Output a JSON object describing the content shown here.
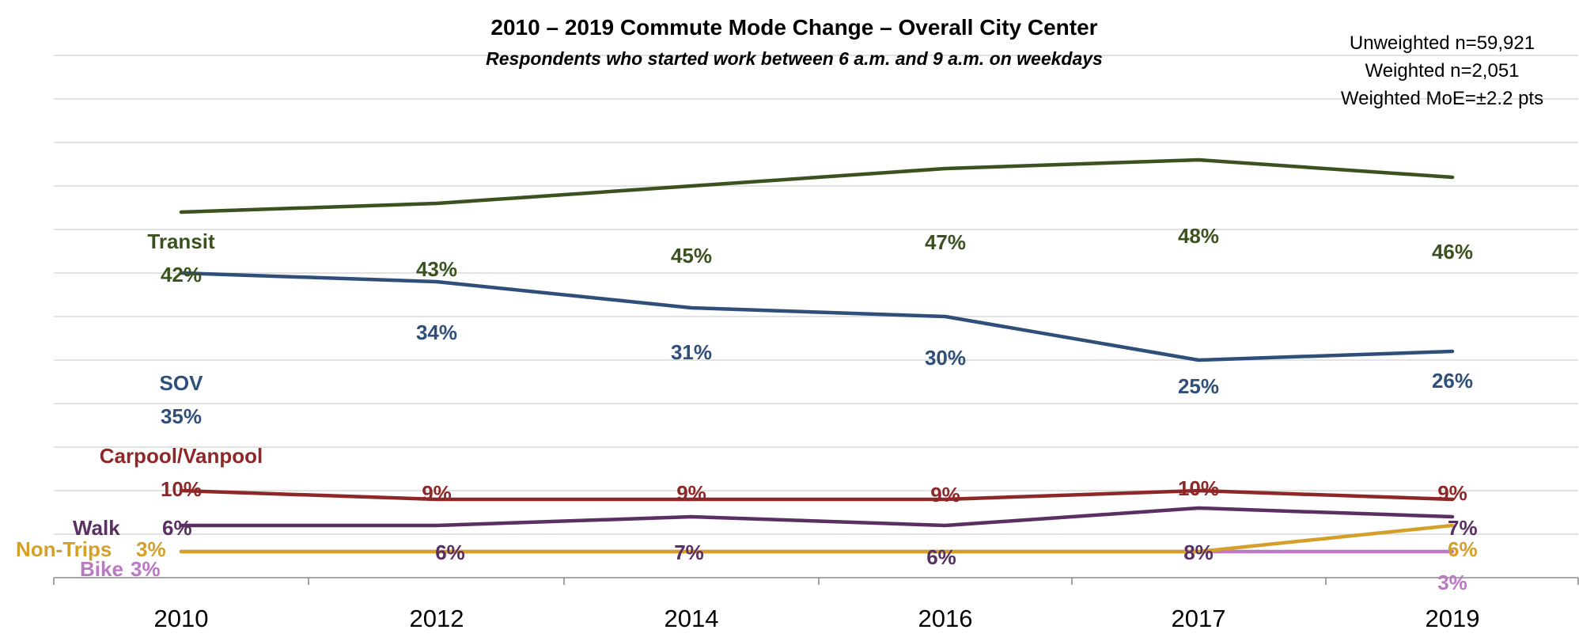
{
  "chart_data": {
    "type": "line",
    "title": "2010 – 2019 Commute Mode Change – Overall City Center",
    "subtitle": "Respondents who started work between 6 a.m. and 9 a.m. on weekdays",
    "stats": [
      "Unweighted n=59,921",
      "Weighted n=2,051",
      "Weighted MoE=±2.2 pts"
    ],
    "categories": [
      "2010",
      "2012",
      "2014",
      "2016",
      "2017",
      "2019"
    ],
    "ylim": [
      0,
      60
    ],
    "grid": true,
    "series": [
      {
        "name": "Transit",
        "color": "#3b521f",
        "values": [
          42,
          43,
          45,
          47,
          48,
          46
        ],
        "labels": [
          "42%",
          "43%",
          "45%",
          "47%",
          "48%",
          "46%"
        ]
      },
      {
        "name": "SOV",
        "color": "#2f4f7a",
        "values": [
          35,
          34,
          31,
          30,
          25,
          26
        ],
        "labels": [
          "35%",
          "34%",
          "31%",
          "30%",
          "25%",
          "26%"
        ]
      },
      {
        "name": "Carpool/Vanpool",
        "color": "#8e2828",
        "values": [
          10,
          9,
          9,
          9,
          10,
          9
        ],
        "labels": [
          "10%",
          "9%",
          "9%",
          "9%",
          "10%",
          "9%"
        ]
      },
      {
        "name": "Walk",
        "color": "#5a2f62",
        "values": [
          6,
          6,
          7,
          6,
          8,
          7
        ],
        "labels": [
          "6%",
          "6%",
          "7%",
          "6%",
          "8%",
          "7%"
        ]
      },
      {
        "name": "Non-Trips",
        "color": "#d4a02a",
        "values": [
          3,
          3,
          3,
          3,
          3,
          6
        ],
        "labels": [
          "3%",
          "",
          "",
          "",
          "",
          "6%"
        ]
      },
      {
        "name": "Bike",
        "color": "#bb78c4",
        "values": [
          3,
          3,
          3,
          3,
          3,
          3
        ],
        "labels": [
          "3%",
          "",
          "",
          "",
          "",
          "3%"
        ]
      }
    ]
  }
}
